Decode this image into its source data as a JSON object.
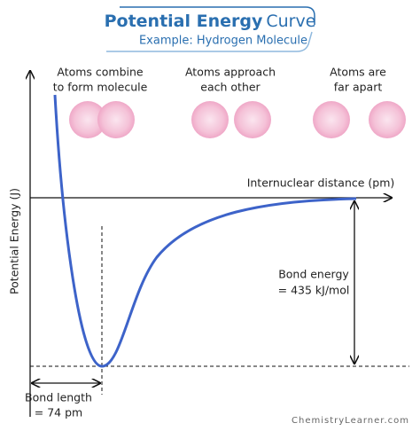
{
  "header": {
    "title": "Potential Energy",
    "title_accent": "Curve",
    "subtitle": "Example: Hydrogen Molecule"
  },
  "stages": [
    {
      "lines": [
        "Atoms combine",
        "to form molecule"
      ]
    },
    {
      "lines": [
        "Atoms approach",
        "each other"
      ]
    },
    {
      "lines": [
        "Atoms are",
        "far apart"
      ]
    }
  ],
  "axes": {
    "x_label": "Internuclear distance (pm)",
    "y_label": "Potential Energy (J)"
  },
  "annotations": {
    "bond_energy": [
      "Bond energy",
      "= 435 kJ/mol"
    ],
    "bond_length": [
      "Bond length",
      "= 74 pm"
    ]
  },
  "footer": "ChemistryLearner.com"
}
